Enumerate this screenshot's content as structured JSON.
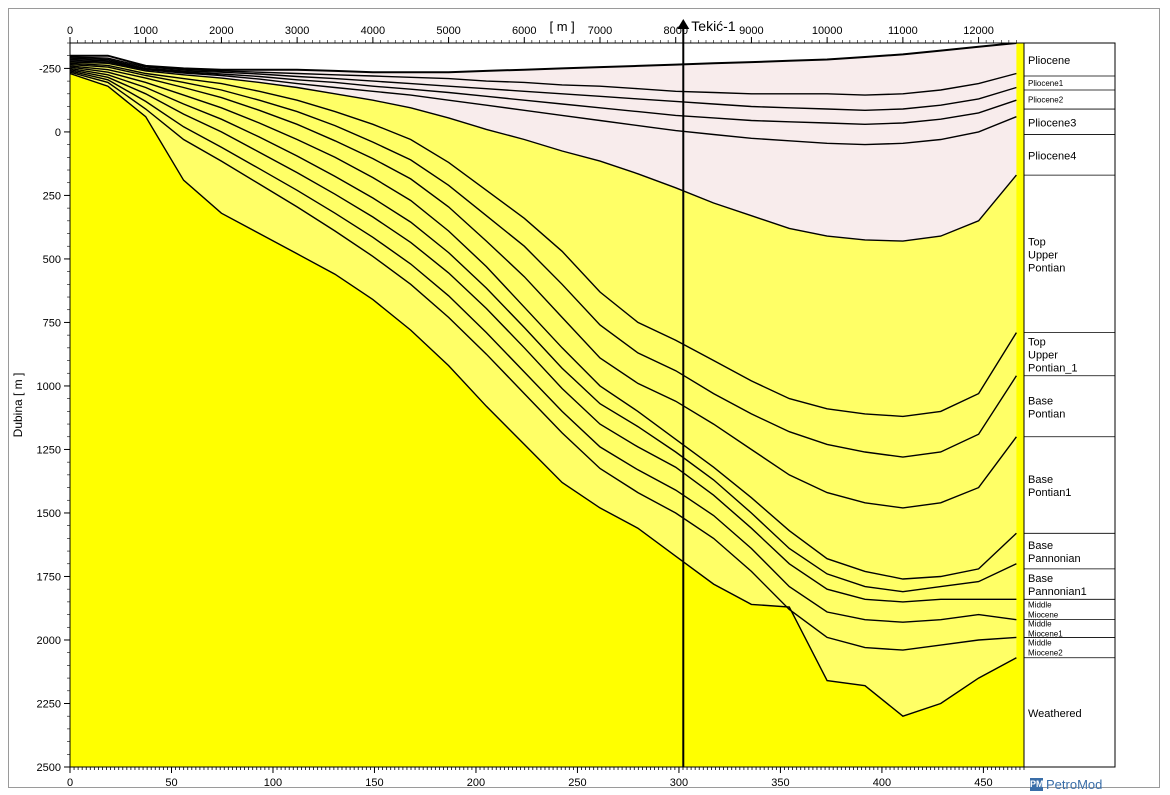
{
  "chart_data": {
    "type": "area",
    "xlabel": "[ m ]",
    "ylabel": "Dubina [ m ]",
    "x_top_ticks": [
      0,
      1000,
      2000,
      3000,
      4000,
      5000,
      6000,
      7000,
      8000,
      9000,
      10000,
      11000,
      12000
    ],
    "x_bottom_ticks": [
      0,
      50,
      100,
      150,
      200,
      250,
      300,
      350,
      400,
      450
    ],
    "y_ticks": [
      -250,
      0,
      250,
      500,
      750,
      1000,
      1250,
      1500,
      1750,
      2000,
      2250,
      2500
    ],
    "xlim": [
      0,
      12600
    ],
    "ylim": [
      -350,
      2500
    ],
    "colors": {
      "pliocene_fill": "#f8ecec",
      "pontian_fill": "#ffff66",
      "deep_fill": "#ffff00",
      "line": "#000000"
    },
    "well": {
      "name": "Tekić-1",
      "x": 8100
    },
    "x_knots": [
      0,
      500,
      1000,
      1500,
      2000,
      2500,
      3000,
      3500,
      4000,
      4500,
      5000,
      5500,
      6000,
      6500,
      7000,
      7500,
      8000,
      8500,
      9000,
      9500,
      10000,
      10500,
      11000,
      11500,
      12000,
      12500
    ],
    "horizons": [
      {
        "name": "Pliocene",
        "depths": [
          -300,
          -300,
          -260,
          -250,
          -245,
          -245,
          -245,
          -240,
          -235,
          -235,
          -235,
          -240,
          -245,
          -250,
          -255,
          -260,
          -265,
          -270,
          -275,
          -280,
          -285,
          -295,
          -305,
          -320,
          -335,
          -350
        ]
      },
      {
        "name": "Pliocene1",
        "depths": [
          -295,
          -290,
          -255,
          -245,
          -240,
          -235,
          -230,
          -225,
          -220,
          -215,
          -210,
          -200,
          -195,
          -185,
          -180,
          -170,
          -160,
          -155,
          -150,
          -150,
          -150,
          -145,
          -150,
          -165,
          -190,
          -230
        ]
      },
      {
        "name": "Pliocene2",
        "depths": [
          -290,
          -285,
          -250,
          -240,
          -235,
          -228,
          -218,
          -210,
          -200,
          -190,
          -180,
          -170,
          -160,
          -150,
          -140,
          -130,
          -120,
          -110,
          -100,
          -95,
          -90,
          -85,
          -90,
          -105,
          -130,
          -175
        ]
      },
      {
        "name": "Pliocene3",
        "depths": [
          -285,
          -280,
          -248,
          -236,
          -228,
          -218,
          -205,
          -195,
          -180,
          -168,
          -155,
          -140,
          -125,
          -110,
          -95,
          -80,
          -65,
          -55,
          -45,
          -40,
          -35,
          -30,
          -35,
          -50,
          -75,
          -125
        ]
      },
      {
        "name": "Pliocene4",
        "depths": [
          -280,
          -275,
          -245,
          -232,
          -222,
          -208,
          -190,
          -175,
          -160,
          -145,
          -125,
          -105,
          -85,
          -65,
          -45,
          -25,
          -5,
          10,
          25,
          35,
          45,
          50,
          45,
          30,
          0,
          -60
        ]
      },
      {
        "name": "Top Upper Pontian",
        "depths": [
          -275,
          -270,
          -240,
          -225,
          -212,
          -195,
          -175,
          -150,
          -125,
          -95,
          -55,
          -10,
          30,
          75,
          115,
          165,
          220,
          280,
          330,
          380,
          410,
          425,
          430,
          410,
          350,
          170
        ]
      },
      {
        "name": "Top Upper Pontian_1",
        "depths": [
          -270,
          -262,
          -230,
          -210,
          -190,
          -160,
          -125,
          -80,
          -30,
          30,
          120,
          230,
          340,
          470,
          630,
          750,
          820,
          900,
          980,
          1050,
          1090,
          1110,
          1120,
          1100,
          1030,
          790
        ]
      },
      {
        "name": "Base Pontian",
        "depths": [
          -265,
          -255,
          -222,
          -195,
          -165,
          -125,
          -80,
          -25,
          40,
          110,
          210,
          330,
          450,
          600,
          760,
          870,
          940,
          1030,
          1110,
          1180,
          1230,
          1260,
          1280,
          1260,
          1190,
          960
        ]
      },
      {
        "name": "Base Pontian1",
        "depths": [
          -260,
          -245,
          -212,
          -175,
          -135,
          -85,
          -30,
          35,
          105,
          185,
          295,
          430,
          570,
          730,
          890,
          990,
          1060,
          1150,
          1250,
          1350,
          1420,
          1460,
          1480,
          1460,
          1400,
          1200
        ]
      },
      {
        "name": "Base Pannonian",
        "depths": [
          -255,
          -235,
          -195,
          -145,
          -95,
          -35,
          30,
          100,
          180,
          270,
          390,
          530,
          690,
          850,
          1000,
          1100,
          1210,
          1320,
          1440,
          1570,
          1680,
          1730,
          1760,
          1750,
          1720,
          1580
        ]
      },
      {
        "name": "Base Pannonian1",
        "depths": [
          -250,
          -225,
          -175,
          -110,
          -50,
          20,
          95,
          175,
          260,
          355,
          475,
          615,
          770,
          930,
          1070,
          1160,
          1260,
          1370,
          1500,
          1640,
          1740,
          1790,
          1810,
          1790,
          1770,
          1700
        ]
      },
      {
        "name": "Middle Miocene",
        "depths": [
          -245,
          -215,
          -150,
          -70,
          0,
          80,
          160,
          245,
          335,
          435,
          555,
          695,
          850,
          1010,
          1150,
          1240,
          1320,
          1430,
          1560,
          1700,
          1800,
          1840,
          1850,
          1840,
          1840,
          1840
        ]
      },
      {
        "name": "Middle Miocene1",
        "depths": [
          -240,
          -205,
          -120,
          -20,
          60,
          145,
          230,
          320,
          415,
          520,
          645,
          790,
          945,
          1100,
          1240,
          1330,
          1410,
          1510,
          1640,
          1790,
          1890,
          1920,
          1930,
          1920,
          1900,
          1920
        ]
      },
      {
        "name": "Middle Miocene2",
        "depths": [
          -235,
          -195,
          -90,
          30,
          115,
          205,
          295,
          390,
          490,
          600,
          730,
          875,
          1030,
          1185,
          1325,
          1420,
          1500,
          1600,
          1730,
          1880,
          1990,
          2030,
          2040,
          2020,
          2000,
          1990
        ]
      },
      {
        "name": "Weathered",
        "depths": [
          -230,
          -180,
          -60,
          190,
          320,
          400,
          480,
          560,
          660,
          780,
          920,
          1080,
          1230,
          1380,
          1480,
          1560,
          1670,
          1780,
          1860,
          1870,
          2160,
          2180,
          2300,
          2250,
          2150,
          2070
        ]
      }
    ],
    "legend_labels": [
      {
        "text": "Pliocene",
        "top": -350,
        "bottom": -220
      },
      {
        "text": "Pliocene1",
        "top": -220,
        "bottom": -165
      },
      {
        "text": "Pliocene2",
        "top": -165,
        "bottom": -90
      },
      {
        "text": "Pliocene3",
        "top": -90,
        "bottom": 10
      },
      {
        "text": "Pliocene4",
        "top": 10,
        "bottom": 170
      },
      {
        "text": "Top Upper Pontian",
        "top": 170,
        "bottom": 790
      },
      {
        "text": "Top Upper Pontian_1",
        "top": 790,
        "bottom": 960
      },
      {
        "text": "Base Pontian",
        "top": 960,
        "bottom": 1200
      },
      {
        "text": "Base Pontian1",
        "top": 1200,
        "bottom": 1580
      },
      {
        "text": "Base Pannonian",
        "top": 1580,
        "bottom": 1720
      },
      {
        "text": "Base Pannonian1",
        "top": 1720,
        "bottom": 1840
      },
      {
        "text": "Middle Miocene",
        "top": 1840,
        "bottom": 1920
      },
      {
        "text": "Middle Miocene1",
        "top": 1920,
        "bottom": 1990
      },
      {
        "text": "Middle Miocene2",
        "top": 1990,
        "bottom": 2070
      },
      {
        "text": "Weathered",
        "top": 2070,
        "bottom": 2500
      }
    ]
  },
  "logo": {
    "icon": "petromod-logo-icon",
    "text": "PetroMod"
  }
}
